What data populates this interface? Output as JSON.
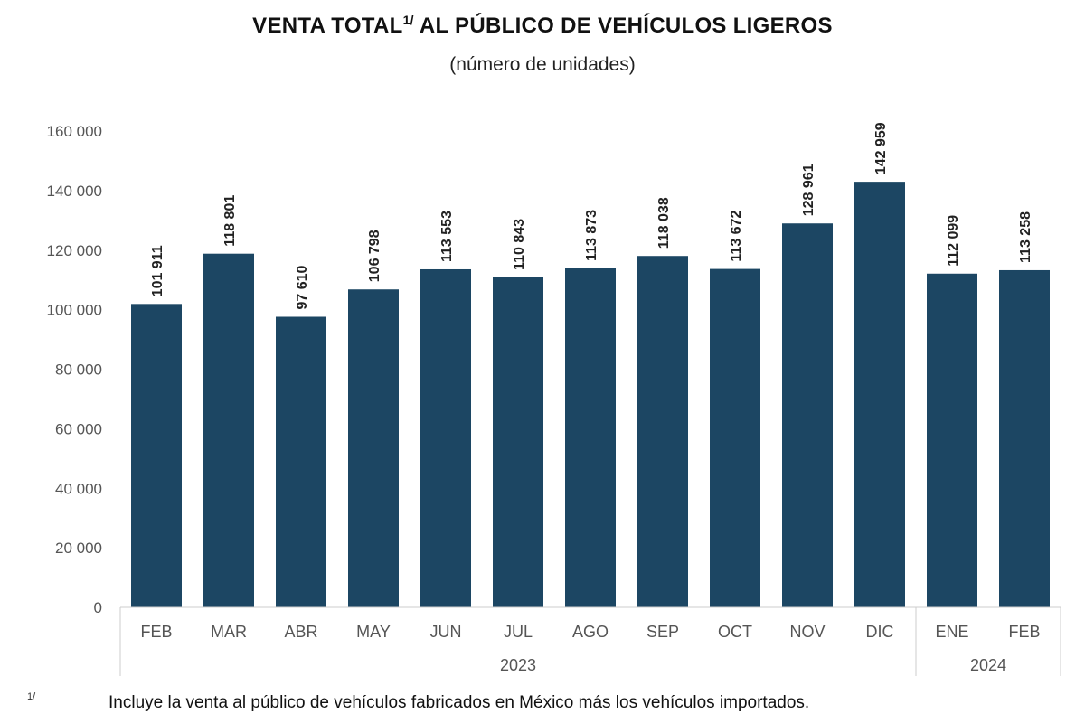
{
  "chart_data": {
    "type": "bar",
    "title": "VENTA TOTAL",
    "title_superscript": "1/",
    "title_rest": "AL PÚBLICO DE VEHÍCULOS LIGEROS",
    "subtitle": "(número de unidades)",
    "categories": [
      "FEB",
      "MAR",
      "ABR",
      "MAY",
      "JUN",
      "JUL",
      "AGO",
      "SEP",
      "OCT",
      "NOV",
      "DIC",
      "ENE",
      "FEB"
    ],
    "groups": [
      {
        "label": "2023",
        "count": 11
      },
      {
        "label": "2024",
        "count": 2
      }
    ],
    "values": [
      101911,
      118801,
      97610,
      106798,
      113553,
      110843,
      113873,
      118038,
      113672,
      128961,
      142959,
      112099,
      113258
    ],
    "data_labels": [
      "101 911",
      "118 801",
      "97 610",
      "106 798",
      "113 553",
      "110 843",
      "113 873",
      "118 038",
      "113 672",
      "128 961",
      "142 959",
      "112 099",
      "113 258"
    ],
    "yticks": [
      0,
      20000,
      40000,
      60000,
      80000,
      100000,
      120000,
      140000,
      160000
    ],
    "ytick_labels": [
      "0",
      "20 000",
      "40 000",
      "60 000",
      "80 000",
      "100 000",
      "120 000",
      "140 000",
      "160 000"
    ],
    "ylim": [
      0,
      160000
    ],
    "grid": false,
    "bar_color": "#1c4663",
    "footnote_mark": "1/",
    "footnote": "Incluye la venta al público de vehículos fabricados en México más los vehículos importados."
  }
}
